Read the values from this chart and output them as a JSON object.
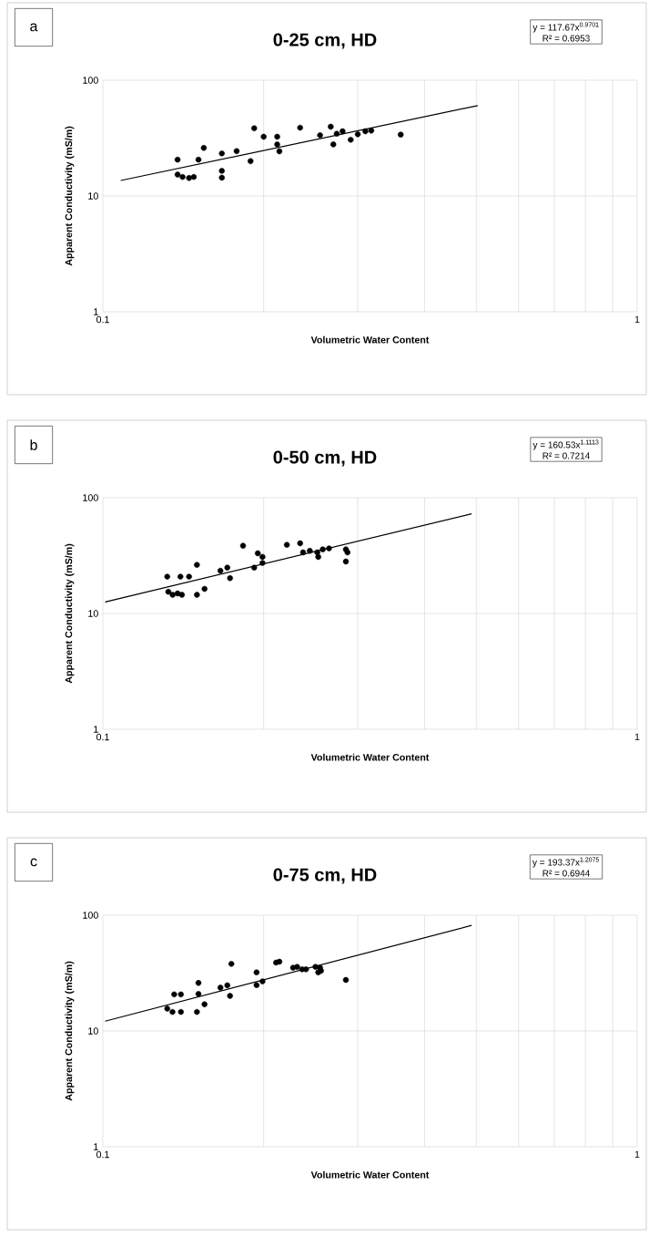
{
  "chart_data": [
    {
      "type": "scatter",
      "title": "0-25 cm, HD",
      "xlabel": "Volumetric Water Content",
      "ylabel": "Apparent Conductivity (mS/m)",
      "annotations": [
        "a",
        "y = 117.67x$^{0.9701}$",
        "R² = 0.6953"
      ],
      "log": "xy",
      "grid": true,
      "xlim": [
        0.1,
        1
      ],
      "ylim": [
        1,
        100
      ],
      "xticks": [
        0.1,
        {
          "value": 0.2,
          "label": null
        },
        {
          "value": 0.3,
          "label": null
        },
        {
          "value": 0.4,
          "label": null
        },
        {
          "value": 0.5,
          "label": null
        },
        {
          "value": 0.6,
          "label": null
        },
        {
          "value": 0.7,
          "label": null
        },
        {
          "value": 0.8,
          "label": null
        },
        {
          "value": 0.9,
          "label": null
        },
        1
      ],
      "yticks": [
        1,
        10,
        100
      ],
      "series": [
        {
          "marker": "circle",
          "color": "#000000",
          "x": [
            0.138,
            0.138,
            0.141,
            0.145,
            0.148,
            0.151,
            0.1545,
            0.167,
            0.167,
            0.167,
            0.178,
            0.189,
            0.192,
            0.2,
            0.212,
            0.212,
            0.214,
            0.234,
            0.255,
            0.267,
            0.27,
            0.274,
            0.281,
            0.291,
            0.3,
            0.31,
            0.318,
            0.361
          ],
          "values": [
            20.6,
            15.3,
            14.6,
            14.3,
            14.6,
            20.6,
            26.0,
            23.3,
            16.5,
            14.4,
            24.4,
            20.0,
            38.5,
            32.5,
            32.5,
            27.9,
            24.3,
            38.9,
            33.5,
            39.7,
            27.9,
            34.5,
            36.2,
            30.6,
            34.1,
            36.2,
            36.7,
            33.9
          ]
        },
        {
          "type": "line",
          "color": "#000000",
          "x": [
            0.108,
            0.503
          ],
          "values": [
            13.6,
            60.4
          ]
        }
      ]
    },
    {
      "type": "scatter",
      "title": "0-50 cm, HD",
      "xlabel": "Volumetric Water Content",
      "ylabel": "Apparent Conductivity (mS/m)",
      "annotations": [
        "b",
        "y = 160.53x$^{1.1113}$",
        "R² = 0.7214"
      ],
      "log": "xy",
      "grid": true,
      "xlim": [
        0.1,
        1
      ],
      "ylim": [
        1,
        100
      ],
      "xticks": [
        0.1,
        {
          "value": 0.2,
          "label": null
        },
        {
          "value": 0.3,
          "label": null
        },
        {
          "value": 0.4,
          "label": null
        },
        {
          "value": 0.5,
          "label": null
        },
        {
          "value": 0.6,
          "label": null
        },
        {
          "value": 0.7,
          "label": null
        },
        {
          "value": 0.8,
          "label": null
        },
        {
          "value": 0.9,
          "label": null
        },
        1
      ],
      "yticks": [
        1,
        10,
        100
      ],
      "series": [
        {
          "marker": "circle",
          "color": "#000000",
          "x": [
            0.132,
            0.1326,
            0.1351,
            0.138,
            0.1406,
            0.1397,
            0.145,
            0.15,
            0.15,
            0.155,
            0.166,
            0.171,
            0.173,
            0.183,
            0.192,
            0.195,
            0.199,
            0.199,
            0.221,
            0.234,
            0.237,
            0.244,
            0.252,
            0.253,
            0.258,
            0.265,
            0.285,
            0.287,
            0.285
          ],
          "values": [
            20.8,
            15.4,
            14.5,
            14.9,
            14.5,
            20.8,
            20.8,
            26.3,
            14.5,
            16.3,
            23.4,
            24.9,
            20.2,
            38.5,
            24.9,
            33.1,
            30.8,
            27.3,
            39.2,
            40.4,
            33.7,
            34.8,
            33.7,
            30.8,
            35.8,
            36.5,
            35.8,
            33.7,
            28.1
          ]
        },
        {
          "type": "line",
          "color": "#000000",
          "x": [
            0.101,
            0.49
          ],
          "values": [
            12.56,
            72.7
          ]
        }
      ]
    },
    {
      "type": "scatter",
      "title": "0-75 cm, HD",
      "xlabel": "Volumetric Water Content",
      "ylabel": "Apparent Conductivity (mS/m)",
      "annotations": [
        "c",
        "y = 193.37x$^{1.2075}$",
        "R² = 0.6944"
      ],
      "log": "xy",
      "grid": true,
      "xlim": [
        0.1,
        1
      ],
      "ylim": [
        1,
        100
      ],
      "xticks": [
        0.1,
        {
          "value": 0.2,
          "label": null
        },
        {
          "value": 0.3,
          "label": null
        },
        {
          "value": 0.4,
          "label": null
        },
        {
          "value": 0.5,
          "label": null
        },
        {
          "value": 0.6,
          "label": null
        },
        {
          "value": 0.7,
          "label": null
        },
        {
          "value": 0.8,
          "label": null
        },
        {
          "value": 0.9,
          "label": null
        },
        1
      ],
      "yticks": [
        1,
        10,
        100
      ],
      "series": [
        {
          "marker": "circle",
          "color": "#000000",
          "x": [
            0.132,
            0.135,
            0.136,
            0.14,
            0.14,
            0.15,
            0.151,
            0.151,
            0.155,
            0.166,
            0.171,
            0.173,
            0.174,
            0.194,
            0.194,
            0.199,
            0.211,
            0.214,
            0.227,
            0.231,
            0.236,
            0.24,
            0.25,
            0.253,
            0.255,
            0.256,
            0.285
          ],
          "values": [
            15.6,
            14.6,
            20.7,
            20.7,
            14.6,
            14.6,
            20.9,
            26.0,
            17.0,
            23.7,
            24.8,
            20.1,
            38.0,
            32.1,
            24.9,
            26.8,
            39.0,
            39.7,
            35.2,
            35.8,
            34.1,
            34.1,
            35.8,
            32.1,
            35.2,
            33.1,
            27.6
          ]
        },
        {
          "type": "line",
          "color": "#000000",
          "x": [
            0.101,
            0.49
          ],
          "values": [
            12.15,
            81.7
          ]
        }
      ]
    }
  ]
}
